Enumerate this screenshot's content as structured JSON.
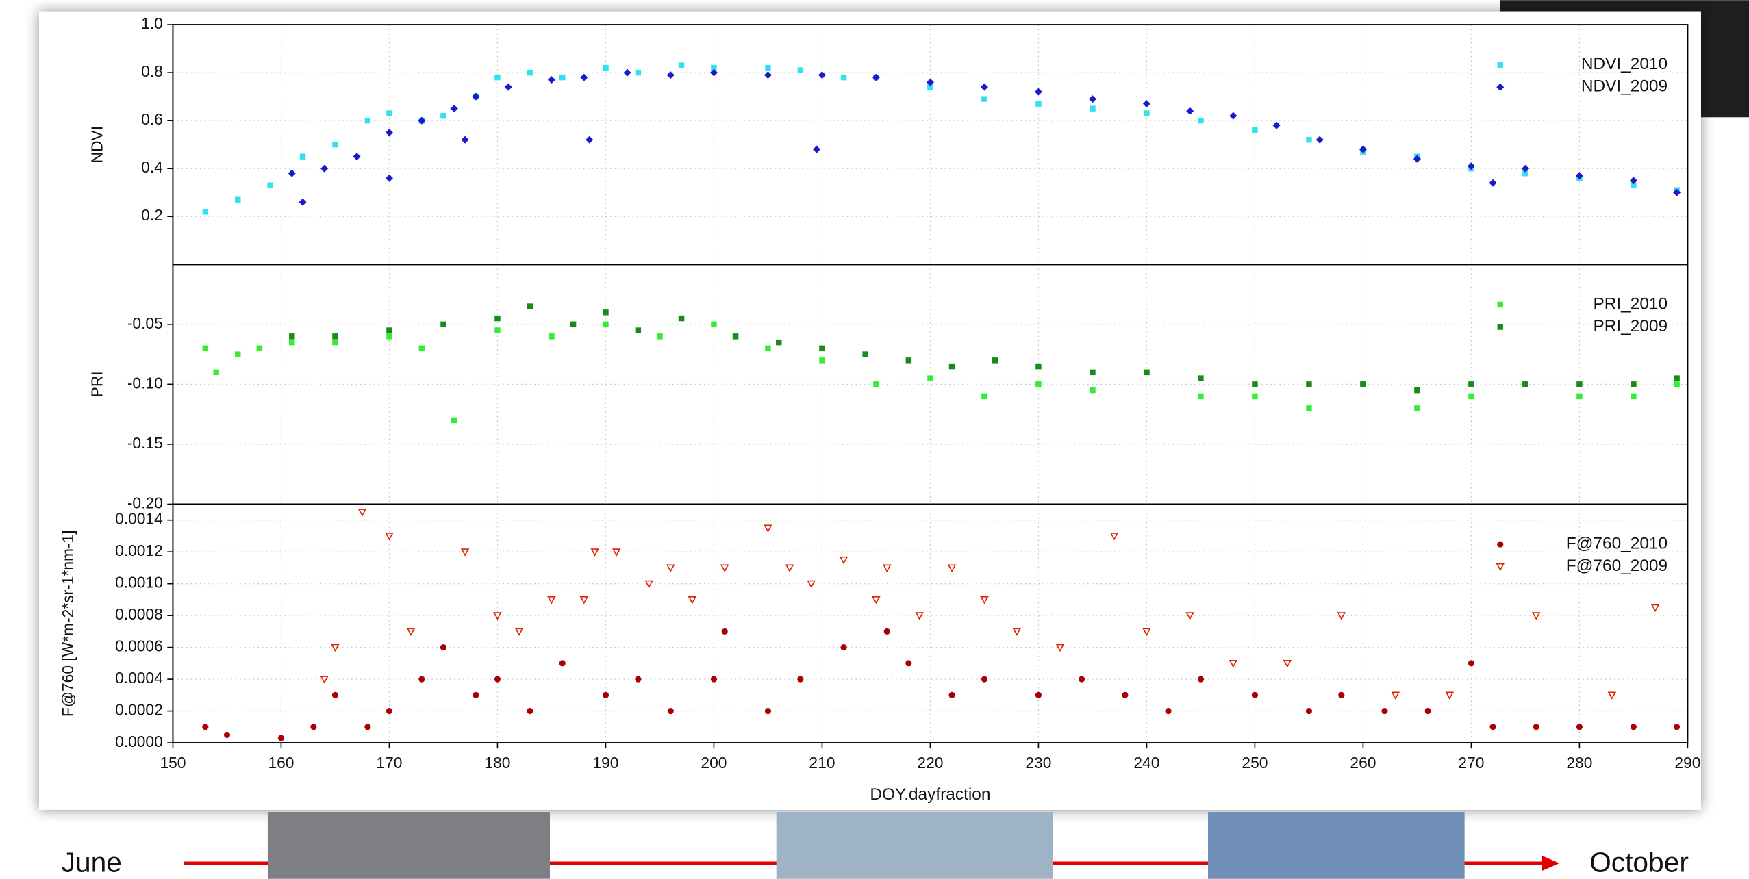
{
  "chart_data": [
    {
      "type": "scatter",
      "ylabel": "NDVI",
      "xlim": [
        150,
        290
      ],
      "ylim": [
        0,
        1
      ],
      "yticks": [
        0.2,
        0.4,
        0.6,
        0.8,
        {
          "value": 1,
          "label": "1.0"
        }
      ],
      "grid": true,
      "legend": "upper right",
      "series": [
        {
          "name": "NDVI_2010",
          "color": "#33e0ee",
          "marker": "square",
          "x": [
            153,
            156,
            159,
            162,
            165,
            168,
            170,
            173,
            175,
            178,
            180,
            183,
            186,
            190,
            193,
            197,
            200,
            205,
            208,
            212,
            215,
            220,
            225,
            230,
            235,
            240,
            245,
            250,
            255,
            260,
            265,
            270,
            275,
            280,
            285,
            289
          ],
          "values": [
            0.22,
            0.27,
            0.33,
            0.45,
            0.5,
            0.6,
            0.63,
            0.6,
            0.62,
            0.7,
            0.78,
            0.8,
            0.78,
            0.82,
            0.8,
            0.83,
            0.82,
            0.82,
            0.81,
            0.78,
            0.78,
            0.74,
            0.69,
            0.67,
            0.65,
            0.63,
            0.6,
            0.56,
            0.52,
            0.47,
            0.45,
            0.4,
            0.38,
            0.36,
            0.33,
            0.31
          ]
        },
        {
          "name": "NDVI_2009",
          "color": "#1a1acc",
          "marker": "diamond",
          "x": [
            161,
            162,
            164,
            167,
            170,
            170,
            173,
            176,
            177,
            178,
            181,
            185,
            188,
            188.5,
            192,
            196,
            200,
            205,
            209.5,
            210,
            215,
            220,
            225,
            230,
            235,
            240,
            244,
            248,
            252,
            256,
            260,
            265,
            270,
            272,
            275,
            280,
            285,
            289
          ],
          "values": [
            0.38,
            0.26,
            0.4,
            0.45,
            0.55,
            0.36,
            0.6,
            0.65,
            0.52,
            0.7,
            0.74,
            0.77,
            0.78,
            0.52,
            0.8,
            0.79,
            0.8,
            0.79,
            0.48,
            0.79,
            0.78,
            0.76,
            0.74,
            0.72,
            0.69,
            0.67,
            0.64,
            0.62,
            0.58,
            0.52,
            0.48,
            0.44,
            0.41,
            0.34,
            0.4,
            0.37,
            0.35,
            0.3
          ]
        }
      ]
    },
    {
      "type": "scatter",
      "ylabel": "PRI",
      "xlim": [
        150,
        290
      ],
      "ylim": [
        -0.2,
        0
      ],
      "yticks": [
        {
          "value": -0.2,
          "label": "-0.20"
        },
        -0.15,
        {
          "value": -0.1,
          "label": "-0.10"
        },
        -0.05
      ],
      "grid": true,
      "legend": "upper right",
      "series": [
        {
          "name": "PRI_2010",
          "color": "#33ee33",
          "marker": "square",
          "x": [
            153,
            154,
            156,
            158,
            161,
            165,
            170,
            173,
            176,
            180,
            185,
            190,
            195,
            200,
            205,
            210,
            215,
            220,
            225,
            230,
            235,
            240,
            245,
            250,
            255,
            260,
            265,
            270,
            275,
            280,
            285,
            289
          ],
          "values": [
            -0.07,
            -0.09,
            -0.075,
            -0.07,
            -0.065,
            -0.065,
            -0.06,
            -0.07,
            -0.13,
            -0.055,
            -0.06,
            -0.05,
            -0.06,
            -0.05,
            -0.07,
            -0.08,
            -0.1,
            -0.095,
            -0.11,
            -0.1,
            -0.105,
            -0.09,
            -0.11,
            -0.11,
            -0.12,
            -0.1,
            -0.12,
            -0.11,
            -0.1,
            -0.11,
            -0.11,
            -0.1
          ]
        },
        {
          "name": "PRI_2009",
          "color": "#1a8a1a",
          "marker": "square",
          "x": [
            161,
            165,
            170,
            175,
            180,
            183,
            187,
            190,
            193,
            197,
            202,
            206,
            210,
            214,
            218,
            222,
            226,
            230,
            235,
            240,
            245,
            250,
            255,
            260,
            265,
            270,
            275,
            280,
            285,
            289
          ],
          "values": [
            -0.06,
            -0.06,
            -0.055,
            -0.05,
            -0.045,
            -0.035,
            -0.05,
            -0.04,
            -0.055,
            -0.045,
            -0.06,
            -0.065,
            -0.07,
            -0.075,
            -0.08,
            -0.085,
            -0.08,
            -0.085,
            -0.09,
            -0.09,
            -0.095,
            -0.1,
            -0.1,
            -0.1,
            -0.105,
            -0.1,
            -0.1,
            -0.1,
            -0.1,
            -0.095
          ]
        }
      ]
    },
    {
      "type": "scatter",
      "ylabel": "F@760 [W*m-2*sr-1*nm-1]",
      "xlabel": "DOY.dayfraction",
      "xlim": [
        150,
        290
      ],
      "ylim": [
        0,
        0.0015
      ],
      "xticks": [
        150,
        160,
        170,
        180,
        190,
        200,
        210,
        220,
        230,
        240,
        250,
        260,
        270,
        280,
        290
      ],
      "yticks": [
        {
          "value": 0,
          "label": "0.0000"
        },
        {
          "value": 0.0002,
          "label": "0.0002"
        },
        {
          "value": 0.0004,
          "label": "0.0004"
        },
        {
          "value": 0.0006,
          "label": "0.0006"
        },
        {
          "value": 0.0008,
          "label": "0.0008"
        },
        {
          "value": 0.001,
          "label": "0.0010"
        },
        {
          "value": 0.0012,
          "label": "0.0012"
        },
        {
          "value": 0.0014,
          "label": "0.0014"
        }
      ],
      "grid": true,
      "legend": "upper right",
      "series": [
        {
          "name": "F@760_2010",
          "color": "#aa0000",
          "marker": "circle",
          "x": [
            153,
            155,
            160,
            163,
            165,
            168,
            170,
            173,
            175,
            178,
            180,
            183,
            186,
            190,
            193,
            196,
            200,
            201,
            205,
            208,
            212,
            216,
            218,
            222,
            225,
            230,
            234,
            238,
            242,
            245,
            250,
            255,
            258,
            262,
            266,
            270,
            272,
            276,
            280,
            285,
            289
          ],
          "values": [
            0.0001,
            5e-05,
            3e-05,
            0.0001,
            0.0003,
            0.0001,
            0.0002,
            0.0004,
            0.0006,
            0.0003,
            0.0004,
            0.0002,
            0.0005,
            0.0003,
            0.0004,
            0.0002,
            0.0004,
            0.0007,
            0.0002,
            0.0004,
            0.0006,
            0.0007,
            0.0005,
            0.0003,
            0.0004,
            0.0003,
            0.0004,
            0.0003,
            0.0002,
            0.0004,
            0.0003,
            0.0002,
            0.0003,
            0.0002,
            0.0002,
            0.0005,
            0.0001,
            0.0001,
            0.0001,
            0.0001,
            0.0001
          ]
        },
        {
          "name": "F@760_2009",
          "color": "#dd2200",
          "marker": "triangle-down",
          "x": [
            164,
            165,
            167.5,
            170,
            172,
            177,
            180,
            182,
            185,
            188,
            189,
            191,
            194,
            196,
            198,
            201,
            205,
            207,
            209,
            212,
            215,
            216,
            219,
            222,
            225,
            228,
            232,
            237,
            240,
            244,
            248,
            253,
            258,
            263,
            268,
            276,
            283,
            287
          ],
          "values": [
            0.0004,
            0.0006,
            0.00145,
            0.0013,
            0.0007,
            0.0012,
            0.0008,
            0.0007,
            0.0009,
            0.0009,
            0.0012,
            0.0012,
            0.001,
            0.0011,
            0.0009,
            0.0011,
            0.00135,
            0.0011,
            0.001,
            0.00115,
            0.0009,
            0.0011,
            0.0008,
            0.0011,
            0.0009,
            0.0007,
            0.0006,
            0.0013,
            0.0007,
            0.0008,
            0.0005,
            0.0005,
            0.0008,
            0.0003,
            0.0003,
            0.0008,
            0.0003,
            0.00085
          ]
        }
      ]
    }
  ],
  "timeline": {
    "start": "June",
    "end": "October"
  }
}
